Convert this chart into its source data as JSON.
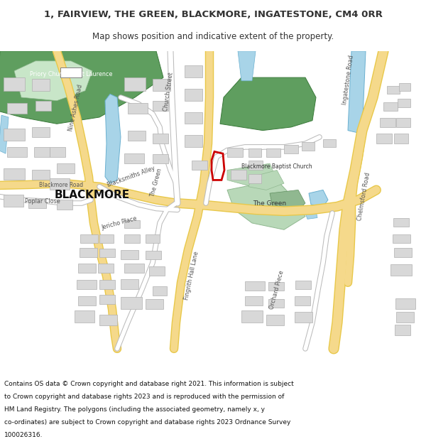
{
  "title_line1": "1, FAIRVIEW, THE GREEN, BLACKMORE, INGATESTONE, CM4 0RR",
  "title_line2": "Map shows position and indicative extent of the property.",
  "footer_lines": [
    "Contains OS data © Crown copyright and database right 2021. This information is subject",
    "to Crown copyright and database rights 2023 and is reproduced with the permission of",
    "HM Land Registry. The polygons (including the associated geometry, namely x, y",
    "co-ordinates) are subject to Crown copyright and database rights 2023 Ordnance Survey",
    "100026316."
  ],
  "bg_color": "#ffffff",
  "map_bg": "#f2f2f2",
  "road_yellow": "#f5d98b",
  "road_yellow_dark": "#e8c84a",
  "building_fill": "#d8d8d8",
  "building_outline": "#b0b0b0",
  "green_area2": "#5f9e5f",
  "water_blue": "#a8d4e8",
  "water_blue2": "#6ab0d0",
  "plot_outline": "#cc0000",
  "text_dark": "#333333"
}
